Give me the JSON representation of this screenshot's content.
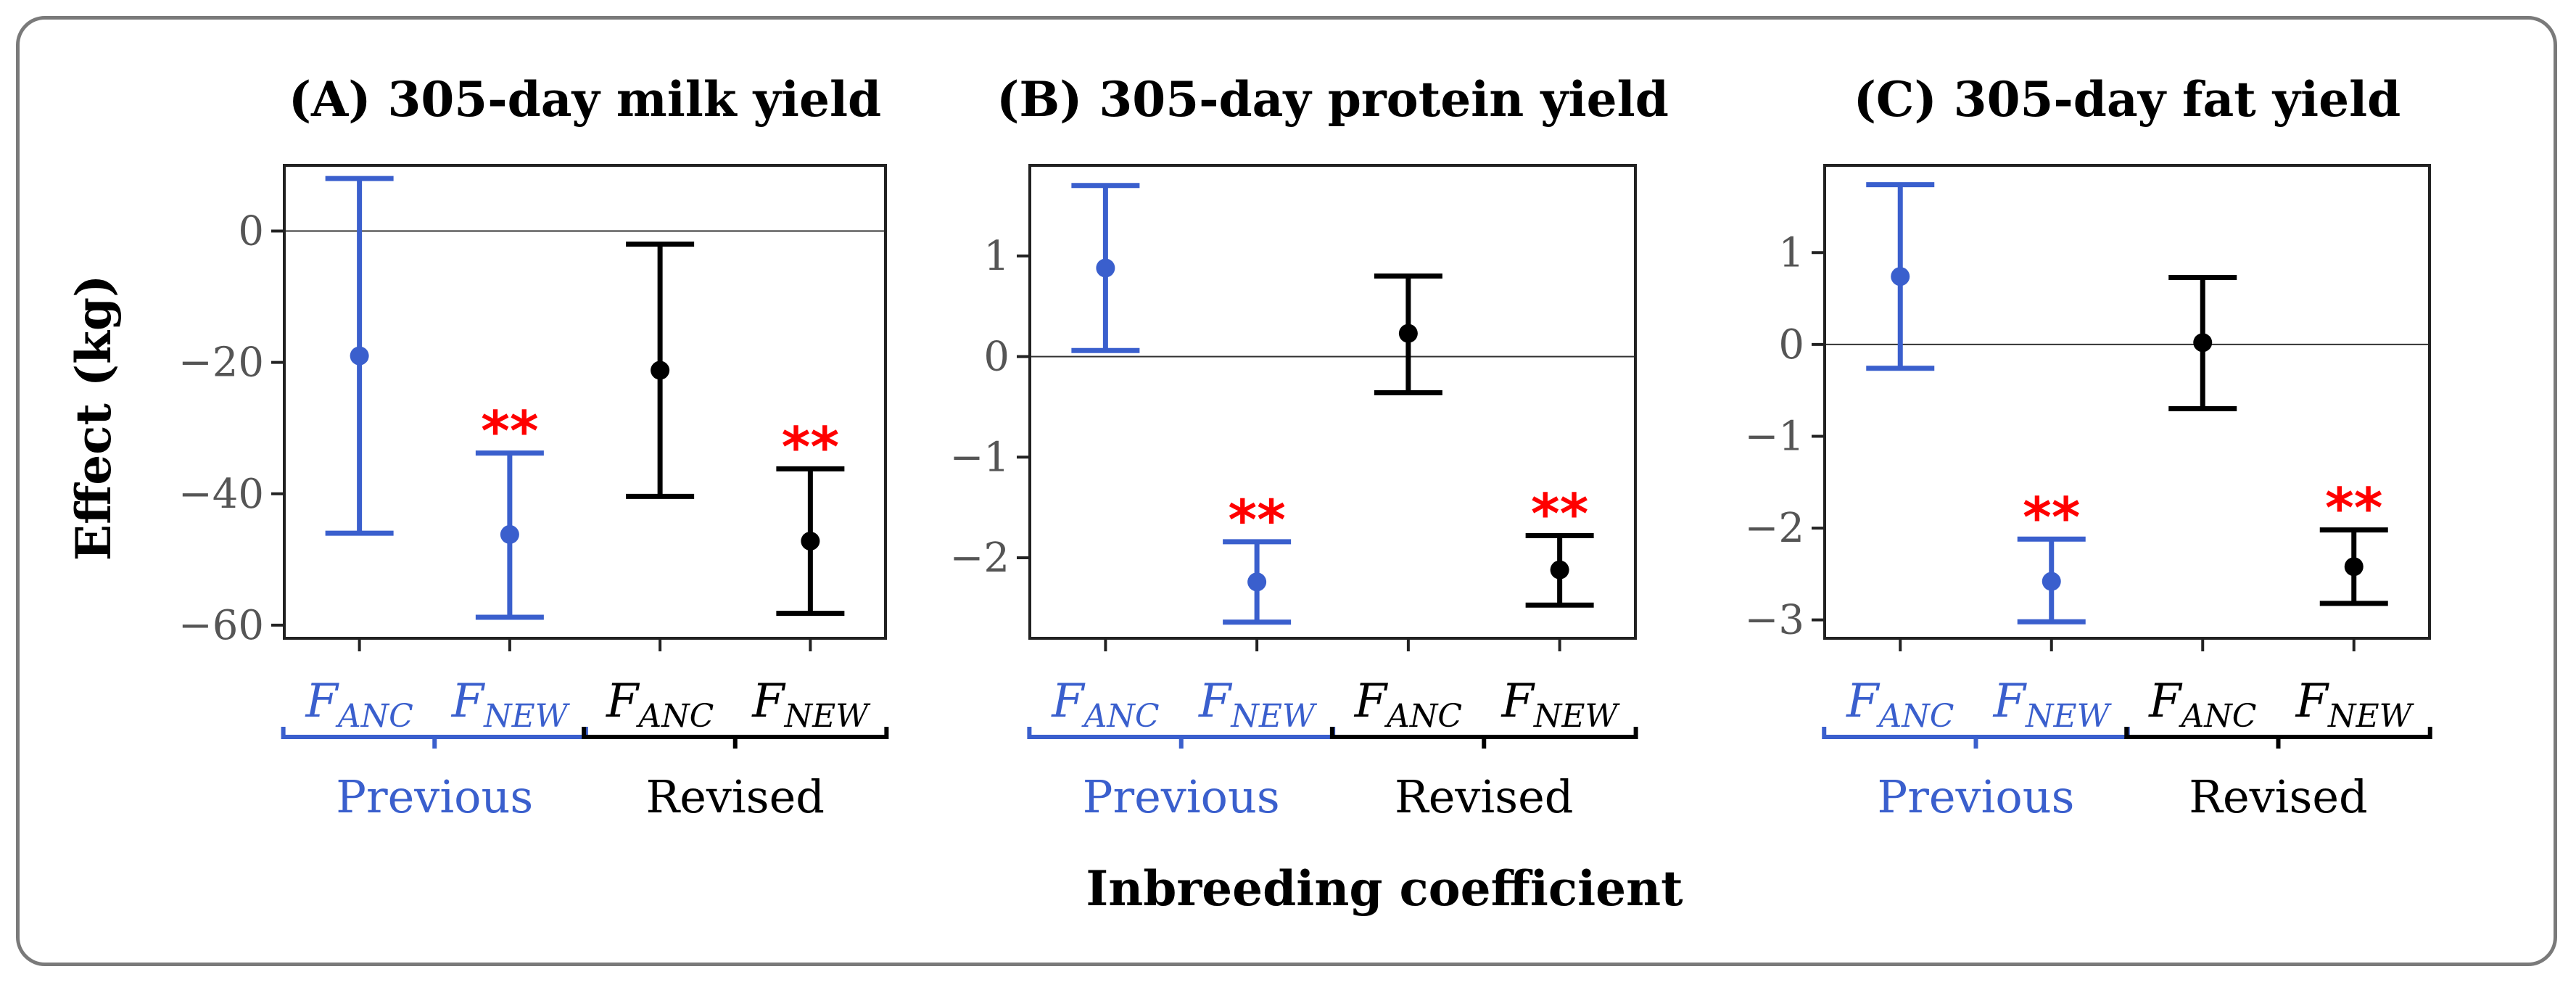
{
  "colors": {
    "previous": "#3a5fcd",
    "revised": "#000000",
    "significance": "#ff0000",
    "frame": "#7a7a7a"
  },
  "ylabel": "Effect (kg)",
  "xlabel": "Inbreeding coefficient",
  "group_labels": {
    "previous": "Previous",
    "revised": "Revised"
  },
  "category_labels": [
    {
      "main": "F",
      "sub": "ANC",
      "group": "previous"
    },
    {
      "main": "F",
      "sub": "NEW",
      "group": "previous"
    },
    {
      "main": "F",
      "sub": "ANC",
      "group": "revised"
    },
    {
      "main": "F",
      "sub": "NEW",
      "group": "revised"
    }
  ],
  "significance_marker": "**",
  "chart_data": [
    {
      "type": "errorbar",
      "title": "(A) 305-day milk yield",
      "ylim": [
        -62,
        10
      ],
      "yticks": [
        0,
        -20,
        -40,
        -60
      ],
      "yticklabels": [
        "0",
        "−20",
        "−40",
        "−60"
      ],
      "reference_line": 0,
      "points": [
        {
          "label": "F_ANC",
          "group": "Previous",
          "estimate": -19,
          "lower": -46,
          "upper": 8,
          "significant": false
        },
        {
          "label": "F_NEW",
          "group": "Previous",
          "estimate": -46.2,
          "lower": -58.8,
          "upper": -33.8,
          "significant": true
        },
        {
          "label": "F_ANC",
          "group": "Revised",
          "estimate": -21.2,
          "lower": -40.4,
          "upper": -2,
          "significant": false
        },
        {
          "label": "F_NEW",
          "group": "Revised",
          "estimate": -47.2,
          "lower": -58.2,
          "upper": -36.2,
          "significant": true
        }
      ]
    },
    {
      "type": "errorbar",
      "title": "(B) 305-day protein yield",
      "ylim": [
        -2.8,
        1.9
      ],
      "yticks": [
        1,
        0,
        -1,
        -2
      ],
      "yticklabels": [
        "1",
        "0",
        "−1",
        "−2"
      ],
      "reference_line": 0,
      "points": [
        {
          "label": "F_ANC",
          "group": "Previous",
          "estimate": 0.88,
          "lower": 0.06,
          "upper": 1.7,
          "significant": false
        },
        {
          "label": "F_NEW",
          "group": "Previous",
          "estimate": -2.24,
          "lower": -2.64,
          "upper": -1.84,
          "significant": true
        },
        {
          "label": "F_ANC",
          "group": "Revised",
          "estimate": 0.23,
          "lower": -0.36,
          "upper": 0.8,
          "significant": false
        },
        {
          "label": "F_NEW",
          "group": "Revised",
          "estimate": -2.12,
          "lower": -2.47,
          "upper": -1.78,
          "significant": true
        }
      ]
    },
    {
      "type": "errorbar",
      "title": "(C) 305-day fat yield",
      "ylim": [
        -3.2,
        1.95
      ],
      "yticks": [
        1,
        0,
        -1,
        -2,
        -3
      ],
      "yticklabels": [
        "1",
        "0",
        "−1",
        "−2",
        "−3"
      ],
      "reference_line": 0,
      "points": [
        {
          "label": "F_ANC",
          "group": "Previous",
          "estimate": 0.74,
          "lower": -0.26,
          "upper": 1.74,
          "significant": false
        },
        {
          "label": "F_NEW",
          "group": "Previous",
          "estimate": -2.58,
          "lower": -3.02,
          "upper": -2.12,
          "significant": true
        },
        {
          "label": "F_ANC",
          "group": "Revised",
          "estimate": 0.02,
          "lower": -0.7,
          "upper": 0.73,
          "significant": false
        },
        {
          "label": "F_NEW",
          "group": "Revised",
          "estimate": -2.42,
          "lower": -2.82,
          "upper": -2.02,
          "significant": true
        }
      ]
    }
  ]
}
